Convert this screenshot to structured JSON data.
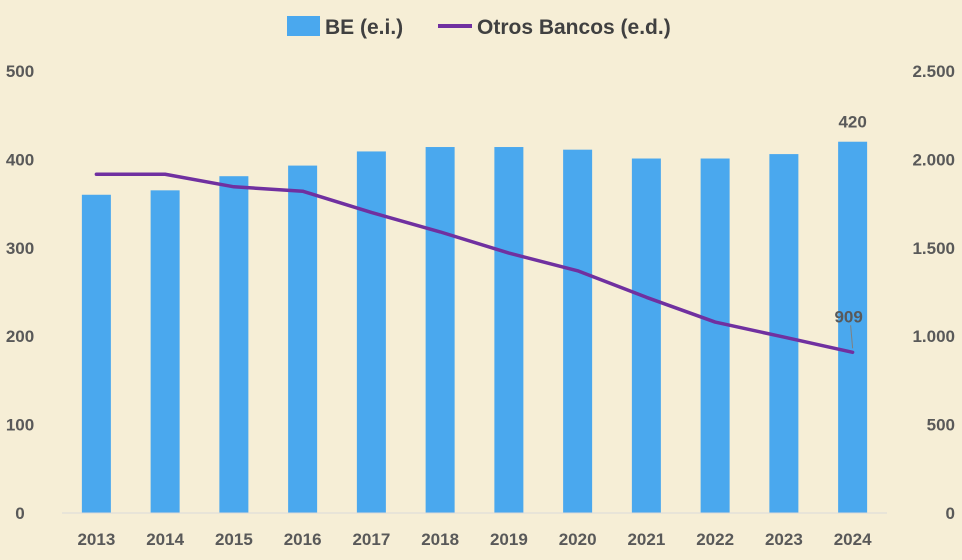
{
  "chart_data": {
    "type": "bar",
    "categories": [
      "2013",
      "2014",
      "2015",
      "2016",
      "2017",
      "2018",
      "2019",
      "2020",
      "2021",
      "2022",
      "2023",
      "2024"
    ],
    "series": [
      {
        "name": "BE (e.i.)",
        "type": "bar",
        "axis": "left",
        "color": "#4aa8ee",
        "values": [
          360,
          365,
          381,
          393,
          409,
          414,
          414,
          411,
          401,
          401,
          406,
          420
        ]
      },
      {
        "name": "Otros Bancos (e.d.)",
        "type": "line",
        "axis": "right",
        "color": "#7030a0",
        "values": [
          1916,
          1916,
          1845,
          1820,
          1700,
          1590,
          1470,
          1370,
          1220,
          1080,
          995,
          909
        ]
      }
    ],
    "y_left": {
      "min": 0,
      "max": 500,
      "ticks": [
        0,
        100,
        200,
        300,
        400,
        500
      ],
      "tick_labels": [
        "0",
        "100",
        "200",
        "300",
        "400",
        "500"
      ]
    },
    "y_right": {
      "min": 0,
      "max": 2500,
      "ticks": [
        0,
        500,
        1000,
        1500,
        2000,
        2500
      ],
      "tick_labels": [
        "0",
        "500",
        "1.000",
        "1.500",
        "2.000",
        "2.500"
      ]
    },
    "data_labels": [
      {
        "series": 0,
        "index": 11,
        "text": "420"
      },
      {
        "series": 1,
        "index": 11,
        "text": "909"
      }
    ],
    "legend_position": "top-center",
    "grid": false,
    "background": "#f6eed6"
  }
}
